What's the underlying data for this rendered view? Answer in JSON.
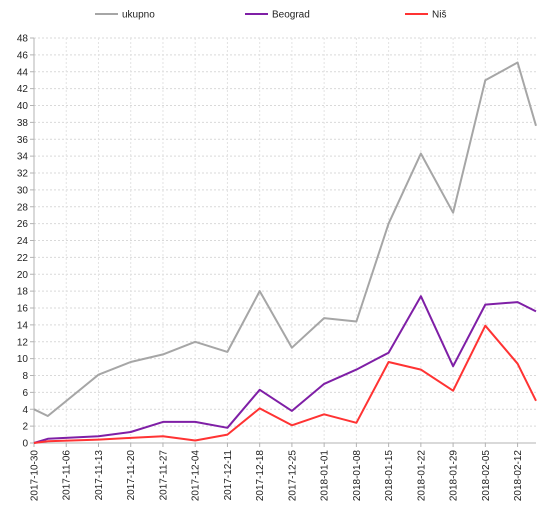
{
  "chart_data": {
    "type": "line",
    "title": "",
    "xlabel": "",
    "ylabel": "",
    "ylim": [
      0,
      48
    ],
    "y_ticks": [
      0,
      2,
      4,
      6,
      8,
      10,
      12,
      14,
      16,
      18,
      20,
      22,
      24,
      26,
      28,
      30,
      32,
      34,
      36,
      38,
      40,
      42,
      44,
      46,
      48
    ],
    "x": [
      "2017-10-30",
      "2017-11-02",
      "2017-11-13",
      "2017-11-20",
      "2017-11-27",
      "2017-12-04",
      "2017-12-11",
      "2017-12-18",
      "2017-12-25",
      "2018-01-01",
      "2018-01-08",
      "2018-01-15",
      "2018-01-22",
      "2018-01-29",
      "2018-02-05",
      "2018-02-12",
      "2018-02-16"
    ],
    "x_tick_labels": [
      "2017-10-30",
      "2017-11-06",
      "2017-11-13",
      "2017-11-20",
      "2017-11-27",
      "2017-12-04",
      "2017-12-11",
      "2017-12-18",
      "2017-12-25",
      "2018-01-01",
      "2018-01-08",
      "2018-01-15",
      "2018-01-22",
      "2018-01-29",
      "2018-02-05",
      "2018-02-12"
    ],
    "x_range": [
      "2017-10-30",
      "2018-02-16"
    ],
    "grid": true,
    "legend_position": "top",
    "series": [
      {
        "name": "ukupno",
        "color": "#a6a6a6",
        "values": [
          4.0,
          3.2,
          8.1,
          9.6,
          10.5,
          12.0,
          10.8,
          18.0,
          11.3,
          14.8,
          14.4,
          26.0,
          34.3,
          27.3,
          43.0,
          45.1,
          37.6
        ]
      },
      {
        "name": "Beograd",
        "color": "#7f1fa6",
        "values": [
          0,
          0.5,
          0.8,
          1.3,
          2.5,
          2.5,
          1.8,
          6.3,
          3.8,
          7.0,
          8.7,
          10.7,
          17.4,
          9.1,
          16.4,
          16.7,
          15.6
        ]
      },
      {
        "name": "Niš",
        "color": "#ff3333",
        "values": [
          0,
          0.2,
          0.4,
          0.6,
          0.8,
          0.3,
          1.0,
          4.1,
          2.1,
          3.4,
          2.4,
          9.6,
          8.7,
          6.2,
          13.9,
          9.4,
          5.0
        ]
      }
    ]
  }
}
